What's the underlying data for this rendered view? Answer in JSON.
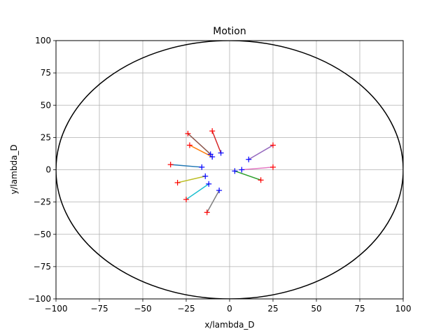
{
  "chart_data": {
    "type": "line",
    "title": "Motion",
    "xlabel": "x/lambda_D",
    "ylabel": "y/lambda_D",
    "xlim": [
      -100,
      100
    ],
    "ylim": [
      -100,
      100
    ],
    "xticks": [
      -100,
      -75,
      -50,
      -25,
      0,
      25,
      50,
      75,
      100
    ],
    "yticks": [
      -100,
      -75,
      -50,
      -25,
      0,
      25,
      50,
      75,
      100
    ],
    "grid": true,
    "boundary": {
      "shape": "circle",
      "center": [
        0,
        0
      ],
      "radius": 100,
      "color": "#000000"
    },
    "start_marker": {
      "symbol": "+",
      "color": "#0000ff"
    },
    "end_marker": {
      "symbol": "+",
      "color": "#ff0000"
    },
    "series": [
      {
        "color": "#1f77b4",
        "start": [
          -16,
          2
        ],
        "end": [
          -34,
          4
        ]
      },
      {
        "color": "#ff7f0e",
        "start": [
          -10,
          10
        ],
        "end": [
          -23,
          19
        ]
      },
      {
        "color": "#2ca02c",
        "start": [
          3,
          -1
        ],
        "end": [
          18,
          -8
        ]
      },
      {
        "color": "#d62728",
        "start": [
          -5,
          13
        ],
        "end": [
          -10,
          30
        ]
      },
      {
        "color": "#9467bd",
        "start": [
          11,
          8
        ],
        "end": [
          25,
          19
        ]
      },
      {
        "color": "#8c564b",
        "start": [
          -11,
          12
        ],
        "end": [
          -24,
          28
        ]
      },
      {
        "color": "#e377c2",
        "start": [
          7,
          0
        ],
        "end": [
          25,
          2
        ]
      },
      {
        "color": "#7f7f7f",
        "start": [
          -6,
          -16
        ],
        "end": [
          -13,
          -33
        ]
      },
      {
        "color": "#bcbd22",
        "start": [
          -14,
          -5
        ],
        "end": [
          -30,
          -10
        ]
      },
      {
        "color": "#17becf",
        "start": [
          -12,
          -11
        ],
        "end": [
          -25,
          -23
        ]
      }
    ]
  }
}
